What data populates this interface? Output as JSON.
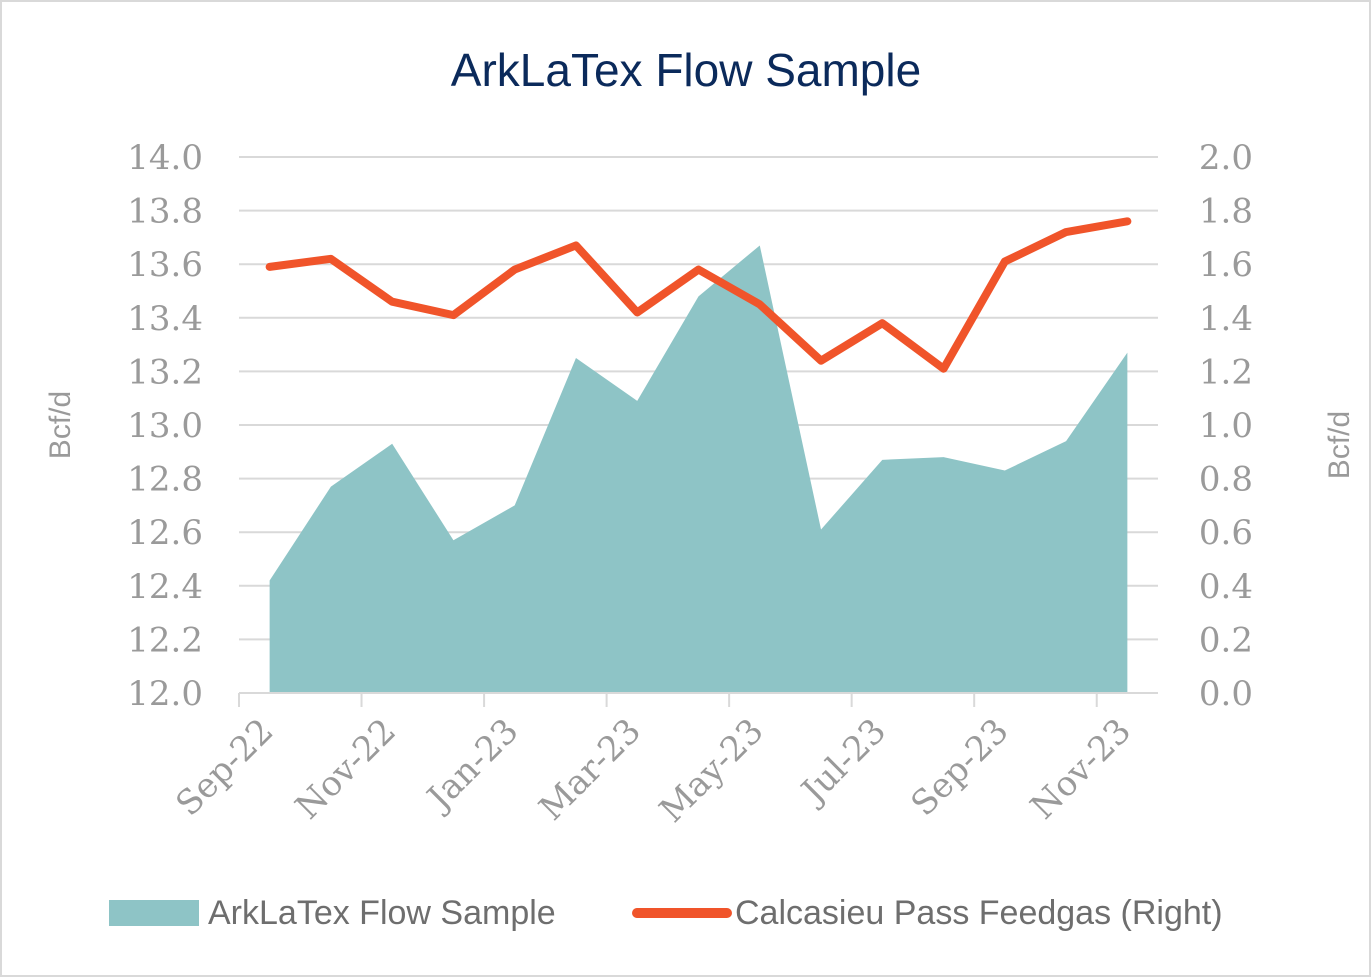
{
  "chart_data": {
    "type": "area",
    "title": "ArkLaTex Flow Sample",
    "x": [
      "Sep-22",
      "Oct-22",
      "Nov-22",
      "Dec-22",
      "Jan-23",
      "Feb-23",
      "Mar-23",
      "Apr-23",
      "May-23",
      "Jun-23",
      "Jul-23",
      "Aug-23",
      "Sep-23",
      "Oct-23",
      "Nov-23"
    ],
    "x_tick_labels": [
      "Sep-22",
      "Nov-22",
      "Jan-23",
      "Mar-23",
      "May-23",
      "Jul-23",
      "Sep-23",
      "Nov-23"
    ],
    "ylabel_left": "Bcf/d",
    "ylabel_right": "Bcf/d",
    "ylim_left": [
      12.0,
      14.0
    ],
    "ylim_right": [
      0.0,
      2.0
    ],
    "y_ticks_left": [
      "12.0",
      "12.2",
      "12.4",
      "12.6",
      "12.8",
      "13.0",
      "13.2",
      "13.4",
      "13.6",
      "13.8",
      "14.0"
    ],
    "y_ticks_right": [
      "0.0",
      "0.2",
      "0.4",
      "0.6",
      "0.8",
      "1.0",
      "1.2",
      "1.4",
      "1.6",
      "1.8",
      "2.0"
    ],
    "grid": true,
    "legend_position": "bottom",
    "series": [
      {
        "name": "ArkLaTex Flow Sample",
        "type": "area",
        "axis": "left",
        "color": "#8ec4c6",
        "values": [
          12.42,
          12.77,
          12.93,
          12.57,
          12.7,
          13.25,
          13.09,
          13.48,
          13.67,
          12.61,
          12.87,
          12.88,
          12.83,
          12.94,
          13.27
        ]
      },
      {
        "name": "Calcasieu Pass Feedgas (Right)",
        "type": "line",
        "axis": "right",
        "color": "#f0542a",
        "values": [
          1.59,
          1.62,
          1.46,
          1.41,
          1.58,
          1.67,
          1.42,
          1.58,
          1.45,
          1.24,
          1.38,
          1.21,
          1.61,
          1.72,
          1.76
        ]
      }
    ]
  }
}
